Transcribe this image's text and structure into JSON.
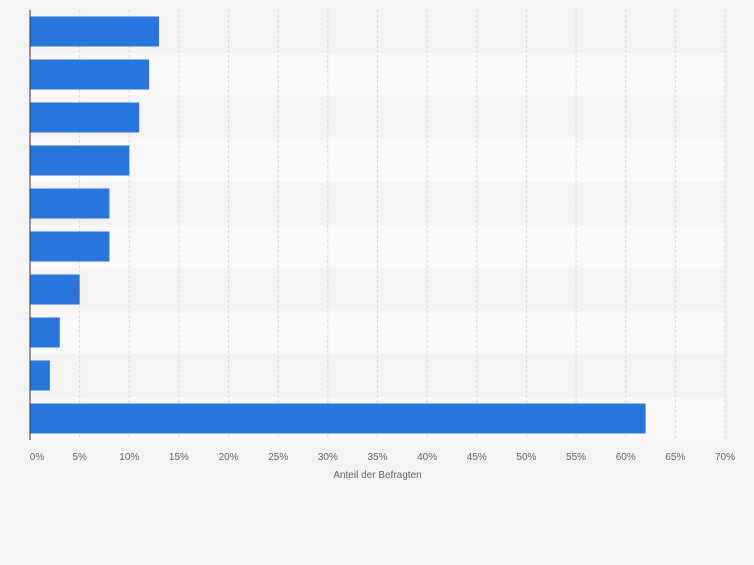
{
  "chart_data": {
    "type": "bar",
    "orientation": "horizontal",
    "title": "",
    "xlabel": "Anteil der Befragten",
    "ylabel": "",
    "xlim": [
      0,
      70
    ],
    "tick_step": 5,
    "tick_labels": [
      "0%",
      "5%",
      "10%",
      "15%",
      "20%",
      "25%",
      "30%",
      "35%",
      "40%",
      "45%",
      "50%",
      "55%",
      "60%",
      "65%",
      "70%"
    ],
    "categories": [
      "",
      "",
      "",
      "",
      "",
      "",
      "",
      "",
      "",
      ""
    ],
    "values": [
      13,
      12,
      11,
      10,
      8,
      8,
      5,
      3,
      2,
      62
    ],
    "grid": true,
    "legend": "none",
    "colors": {
      "bar": "#2876dd",
      "page_background": "#f4f4f4",
      "band_dark": "#f4f4f4",
      "band_light": "#f9f9f9",
      "grid": "#dadada",
      "axis": "#333333",
      "tick_text": "#666666"
    }
  }
}
